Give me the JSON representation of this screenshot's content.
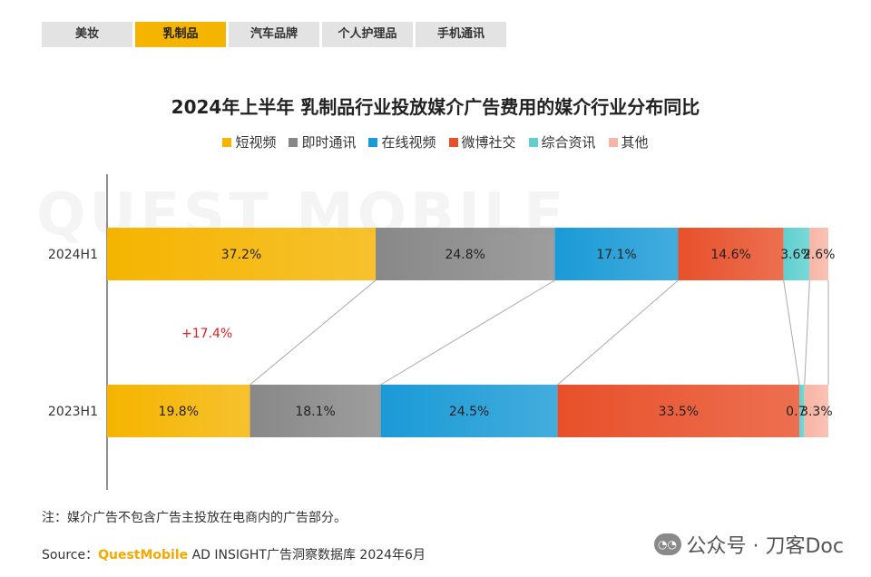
{
  "tabs": [
    {
      "label": "美妆",
      "active": false
    },
    {
      "label": "乳制品",
      "active": true
    },
    {
      "label": "汽车品牌",
      "active": false
    },
    {
      "label": "个人护理品",
      "active": false
    },
    {
      "label": "手机通讯",
      "active": false
    }
  ],
  "watermark": "QUEST MOBILE",
  "note": "注：媒介广告不包含广告主投放在电商内的广告部分。",
  "source": {
    "prefix": "Source：",
    "brand": "QuestMobile",
    "rest": " AD INSIGHT广告洞察数据库 2024年6月"
  },
  "wechat": {
    "icon": "wechat-icon",
    "label": "公众号 · 刀客Doc"
  },
  "colors": {
    "短视频": "#f5b400",
    "即时通讯": "#888888",
    "在线视频": "#1a9ad6",
    "微博社交": "#e8502a",
    "综合资讯": "#5fcfcf",
    "其他": "#f8b5a5"
  },
  "chart_data": {
    "type": "bar",
    "orientation": "horizontal",
    "stacked": true,
    "title": "2024年上半年 乳制品行业投放媒介广告费用的媒介行业分布同比",
    "categories": [
      "2024H1",
      "2023H1"
    ],
    "series": [
      {
        "name": "短视频",
        "values": [
          37.2,
          19.8
        ],
        "labels": [
          "37.2%",
          "19.8%"
        ]
      },
      {
        "name": "即时通讯",
        "values": [
          24.8,
          18.1
        ],
        "labels": [
          "24.8%",
          "18.1%"
        ]
      },
      {
        "name": "在线视频",
        "values": [
          17.1,
          24.5
        ],
        "labels": [
          "17.1%",
          "24.5%"
        ]
      },
      {
        "name": "微博社交",
        "values": [
          14.6,
          33.5
        ],
        "labels": [
          "14.6%",
          "33.5%"
        ]
      },
      {
        "name": "综合资讯",
        "values": [
          3.6,
          0.7
        ],
        "labels": [
          "3.6%",
          "0.7%"
        ]
      },
      {
        "name": "其他",
        "values": [
          2.6,
          3.3
        ],
        "labels": [
          "2.6%",
          "3.3%"
        ]
      }
    ],
    "annotation": "+17.4%",
    "legend_position": "top",
    "grid": false
  }
}
